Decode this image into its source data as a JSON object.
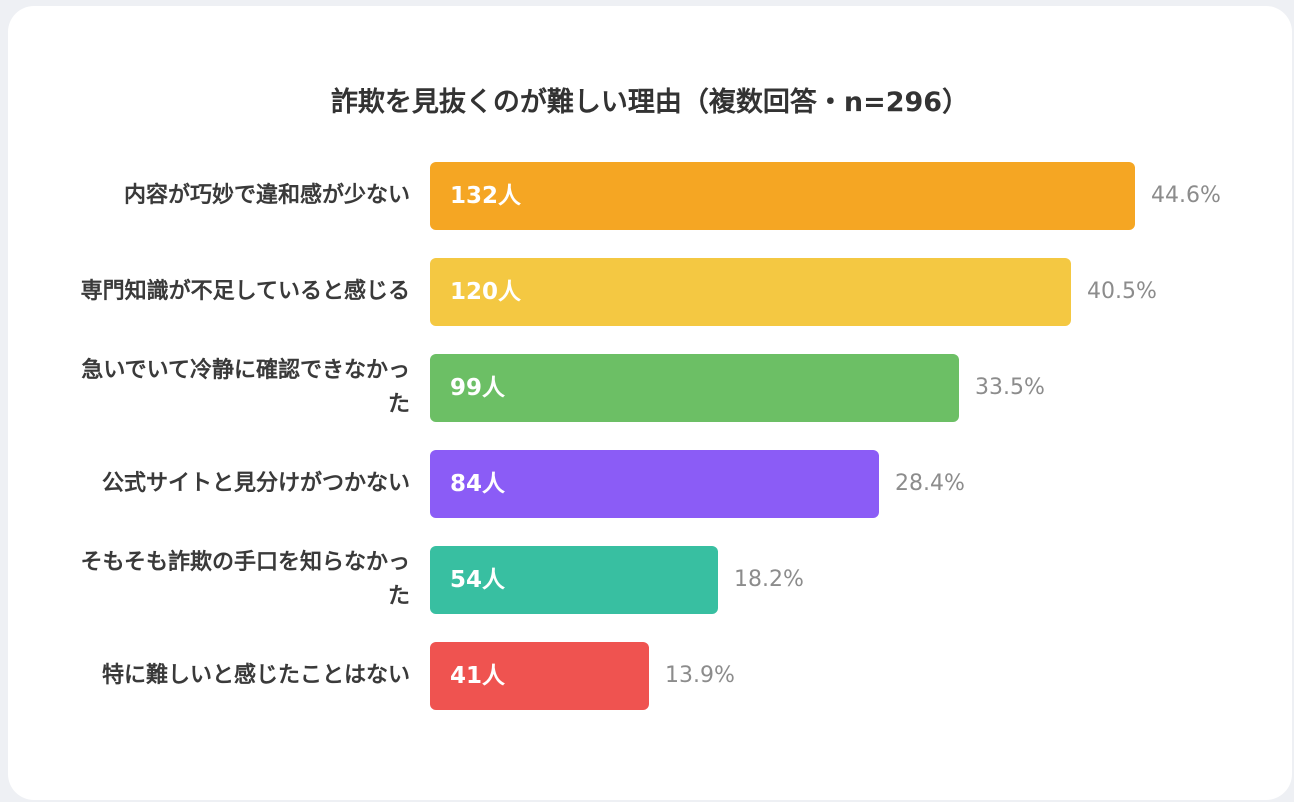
{
  "chart_data": {
    "type": "bar",
    "orientation": "horizontal",
    "title": "詐欺を見抜くのが難しい理由（複数回答・n=296）",
    "categories": [
      "内容が巧妙で違和感が少ない",
      "専門知識が不足していると感じる",
      "急いでいて冷静に確認できなかった",
      "公式サイトと見分けがつかない",
      "そもそも詐欺の手口を知らなかった",
      "特に難しいと感じたことはない"
    ],
    "values": [
      132,
      120,
      99,
      84,
      54,
      41
    ],
    "value_labels": [
      "132人",
      "120人",
      "99人",
      "84人",
      "54人",
      "41人"
    ],
    "percents": [
      "44.6%",
      "40.5%",
      "33.5%",
      "28.4%",
      "18.2%",
      "13.9%"
    ],
    "colors": [
      "#f5a623",
      "#f4c842",
      "#6cbf65",
      "#8b5cf6",
      "#38bfa1",
      "#ef5350"
    ],
    "xlim": [
      0,
      132
    ],
    "grid": false,
    "legend": "none"
  }
}
